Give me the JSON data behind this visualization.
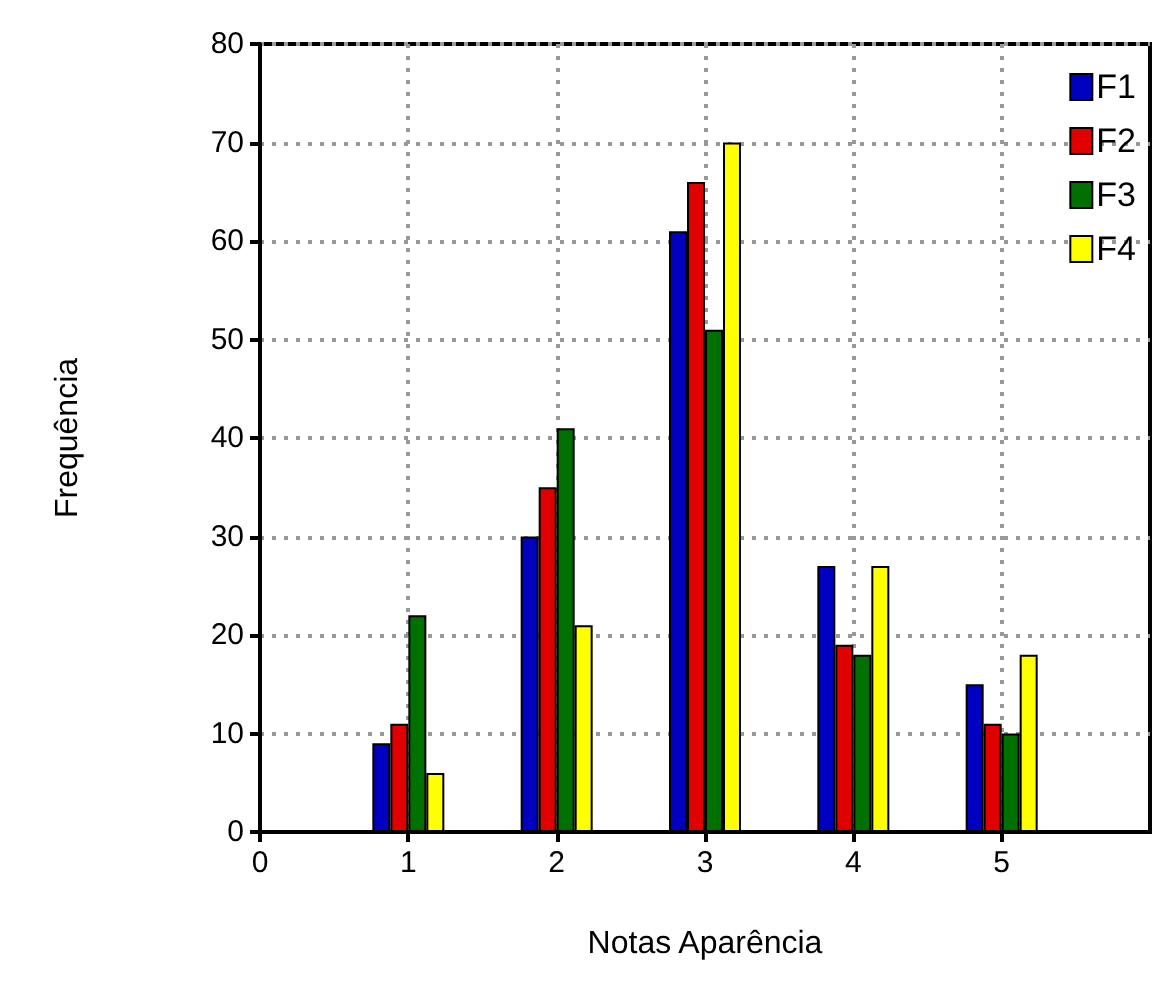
{
  "chart_data": {
    "type": "bar",
    "xlabel": "Notas Aparência",
    "ylabel": "Frequência",
    "x": [
      1,
      2,
      3,
      4,
      5
    ],
    "series": [
      {
        "name": "F1",
        "color": "#0000c0",
        "values": [
          9,
          30,
          61,
          27,
          15
        ]
      },
      {
        "name": "F2",
        "color": "#e00000",
        "values": [
          11,
          35,
          66,
          19,
          11
        ]
      },
      {
        "name": "F3",
        "color": "#007000",
        "values": [
          22,
          41,
          51,
          18,
          10
        ]
      },
      {
        "name": "F4",
        "color": "#ffff00",
        "values": [
          6,
          21,
          70,
          27,
          18
        ]
      }
    ],
    "xlim": [
      0,
      6
    ],
    "xticks": [
      0,
      1,
      2,
      3,
      4,
      5
    ],
    "ylim": [
      0,
      80
    ],
    "yticks": [
      0,
      10,
      20,
      30,
      40,
      50,
      60,
      70,
      80
    ],
    "grid": true,
    "legend": "top right"
  }
}
